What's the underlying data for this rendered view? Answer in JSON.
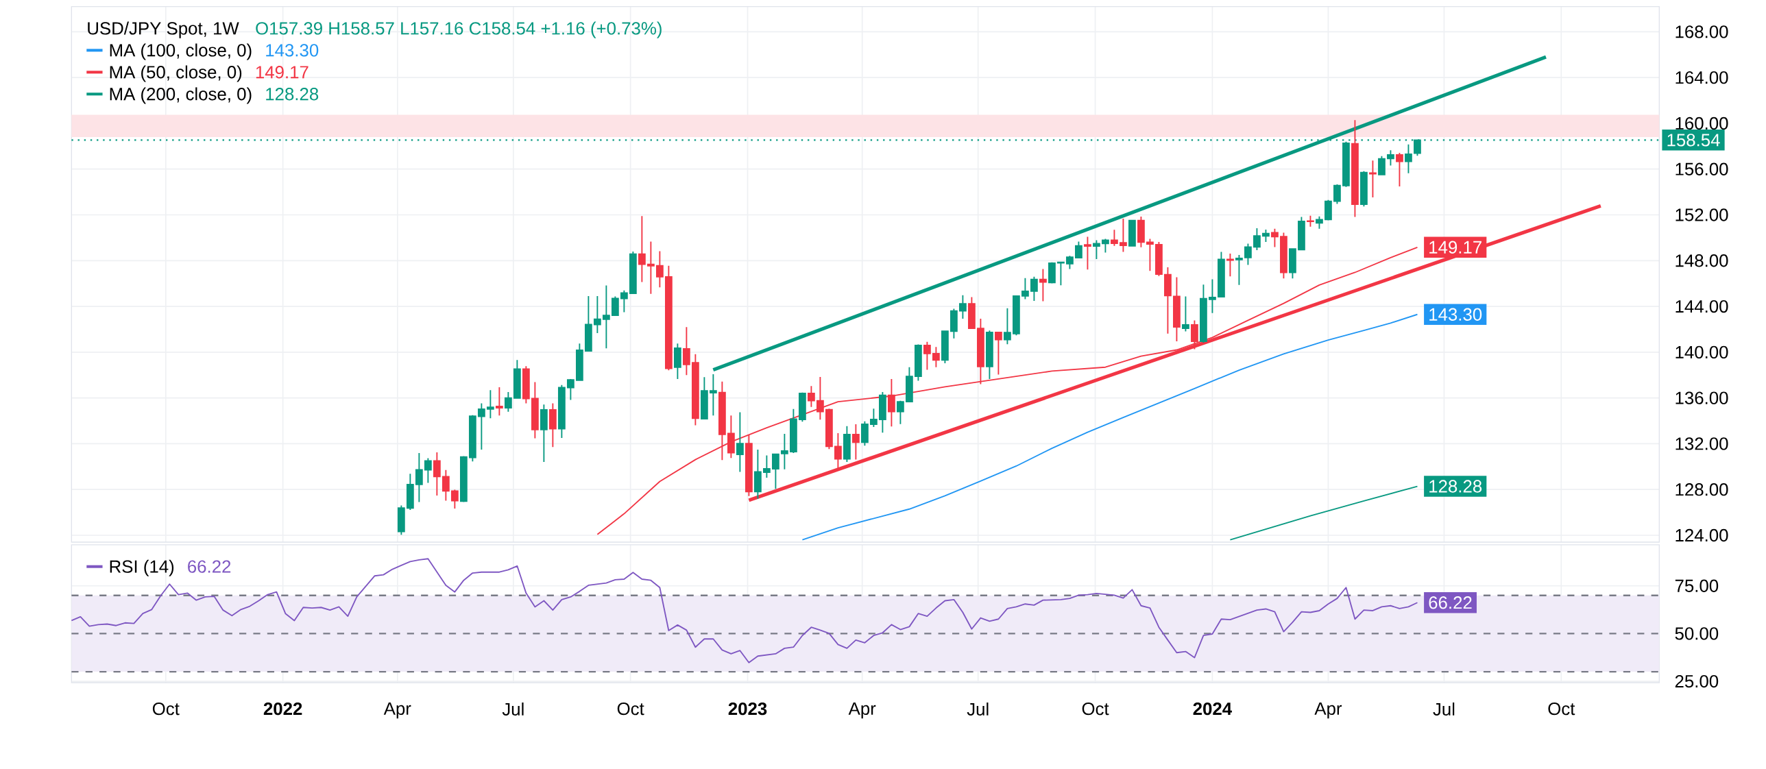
{
  "chart_data": [
    {
      "type": "candlestick",
      "title": "USD/JPY Spot, 1W",
      "subtitle": "O157.39  H158.57  L157.16  C158.54  +1.16 (+0.73%)",
      "xlim": [
        "2021-07-19",
        "2024-12-17"
      ],
      "ylim": [
        123.4,
        170.2
      ],
      "grid": true,
      "legend": "top left",
      "tick_labels": "y",
      "xticks": [
        {
          "value": "2021-10-01",
          "label": null
        },
        {
          "value": "2022-01-01",
          "label": null
        },
        {
          "value": "2022-04-01",
          "label": null
        },
        {
          "value": "2022-07-01",
          "label": null
        },
        {
          "value": "2022-10-01",
          "label": null
        },
        {
          "value": "2023-01-01",
          "label": null
        },
        {
          "value": "2023-04-01",
          "label": null
        },
        {
          "value": "2023-07-01",
          "label": null
        },
        {
          "value": "2023-10-01",
          "label": null
        },
        {
          "value": "2024-01-01",
          "label": null
        },
        {
          "value": "2024-04-01",
          "label": null
        },
        {
          "value": "2024-07-01",
          "label": null
        },
        {
          "value": "2024-10-01",
          "label": null
        }
      ],
      "yticks": [
        {
          "value": 124,
          "label": "124.00"
        },
        {
          "value": 128,
          "label": "128.00"
        },
        {
          "value": 132,
          "label": "132.00"
        },
        {
          "value": 136,
          "label": "136.00"
        },
        {
          "value": 140,
          "label": "140.00"
        },
        {
          "value": 144,
          "label": "144.00"
        },
        {
          "value": 148,
          "label": "148.00"
        },
        {
          "value": 152,
          "label": "152.00"
        },
        {
          "value": 156,
          "label": "156.00"
        },
        {
          "value": 160,
          "label": "160.00"
        },
        {
          "value": 164,
          "label": "164.00"
        },
        {
          "value": 168,
          "label": "168.00"
        }
      ],
      "ref_lines": [
        {
          "axis": "y",
          "value": 158.54,
          "label": "158.54",
          "color": "#089981",
          "line_style": "dotted"
        }
      ],
      "bands": [
        {
          "axis": "y",
          "from": 158.8,
          "to": 160.74,
          "color": "#fde3e6"
        }
      ],
      "series": [
        {
          "x": [
            "2022-04-04",
            "2022-04-11",
            "2022-04-18",
            "2022-04-25",
            "2022-05-02",
            "2022-05-09",
            "2022-05-16",
            "2022-05-23",
            "2022-05-30",
            "2022-06-06",
            "2022-06-13",
            "2022-06-20",
            "2022-06-27",
            "2022-07-04",
            "2022-07-11",
            "2022-07-18",
            "2022-07-25",
            "2022-08-01",
            "2022-08-08",
            "2022-08-15",
            "2022-08-22",
            "2022-08-29",
            "2022-09-05",
            "2022-09-12",
            "2022-09-19",
            "2022-09-26",
            "2022-10-03",
            "2022-10-10",
            "2022-10-17",
            "2022-10-24",
            "2022-10-31",
            "2022-11-07",
            "2022-11-14",
            "2022-11-21",
            "2022-11-28",
            "2022-12-05",
            "2022-12-12",
            "2022-12-19",
            "2022-12-26",
            "2023-01-02",
            "2023-01-09",
            "2023-01-16",
            "2023-01-23",
            "2023-01-30",
            "2023-02-06",
            "2023-02-13",
            "2023-02-20",
            "2023-02-27",
            "2023-03-06",
            "2023-03-13",
            "2023-03-20",
            "2023-03-27",
            "2023-04-03",
            "2023-04-10",
            "2023-04-17",
            "2023-04-24",
            "2023-05-01",
            "2023-05-08",
            "2023-05-15",
            "2023-05-22",
            "2023-05-29",
            "2023-06-05",
            "2023-06-12",
            "2023-06-19",
            "2023-06-26",
            "2023-07-03",
            "2023-07-10",
            "2023-07-17",
            "2023-07-24",
            "2023-07-31",
            "2023-08-07",
            "2023-08-14",
            "2023-08-21",
            "2023-08-28",
            "2023-09-04",
            "2023-09-11",
            "2023-09-18",
            "2023-09-25",
            "2023-10-02",
            "2023-10-09",
            "2023-10-16",
            "2023-10-23",
            "2023-10-30",
            "2023-11-06",
            "2023-11-13",
            "2023-11-20",
            "2023-11-27",
            "2023-12-04",
            "2023-12-11",
            "2023-12-18",
            "2023-12-25",
            "2024-01-01",
            "2024-01-08",
            "2024-01-15",
            "2024-01-22",
            "2024-01-29",
            "2024-02-05",
            "2024-02-12",
            "2024-02-19",
            "2024-02-26",
            "2024-03-04",
            "2024-03-11",
            "2024-03-18",
            "2024-03-25",
            "2024-04-01",
            "2024-04-08",
            "2024-04-15",
            "2024-04-22",
            "2024-04-29",
            "2024-05-06",
            "2024-05-13",
            "2024-05-20",
            "2024-05-27",
            "2024-06-03",
            "2024-06-10"
          ],
          "ohlc": [
            [
              124.32,
              126.61,
              124.05,
              126.38
            ],
            [
              126.38,
              129.38,
              126.22,
              128.44
            ],
            [
              128.44,
              131.19,
              126.91,
              129.72
            ],
            [
              129.72,
              130.73,
              128.58,
              130.5
            ],
            [
              130.5,
              131.25,
              127.48,
              129.13
            ],
            [
              129.13,
              129.7,
              127.02,
              127.87
            ],
            [
              127.87,
              127.98,
              126.33,
              127.02
            ],
            [
              126.97,
              130.91,
              126.91,
              130.84
            ],
            [
              130.8,
              134.5,
              130.45,
              134.41
            ],
            [
              134.39,
              135.53,
              131.48,
              135.03
            ],
            [
              135.03,
              136.68,
              134.23,
              135.19
            ],
            [
              135.26,
              136.93,
              134.46,
              135.14
            ],
            [
              135.14,
              136.52,
              134.8,
              135.99
            ],
            [
              135.99,
              139.31,
              135.95,
              138.53
            ],
            [
              138.53,
              138.78,
              135.53,
              135.95
            ],
            [
              135.95,
              137.39,
              132.47,
              133.24
            ],
            [
              133.24,
              135.42,
              130.41,
              134.96
            ],
            [
              134.96,
              135.53,
              131.71,
              133.31
            ],
            [
              133.31,
              137.13,
              132.51,
              136.91
            ],
            [
              136.91,
              137.66,
              135.83,
              137.59
            ],
            [
              137.55,
              140.75,
              137.55,
              140.18
            ],
            [
              140.11,
              144.91,
              140.11,
              142.42
            ],
            [
              142.42,
              144.91,
              141.67,
              142.88
            ],
            [
              142.88,
              145.83,
              140.34,
              143.22
            ],
            [
              143.22,
              144.87,
              143.22,
              144.69
            ],
            [
              144.69,
              145.4,
              143.5,
              145.17
            ],
            [
              145.14,
              148.8,
              145.1,
              148.58
            ],
            [
              148.58,
              151.89,
              146.13,
              147.68
            ],
            [
              147.68,
              149.67,
              145.1,
              147.55
            ],
            [
              147.55,
              148.83,
              145.67,
              146.59
            ],
            [
              146.59,
              147.55,
              138.42,
              138.58
            ],
            [
              138.69,
              140.75,
              137.66,
              140.36
            ],
            [
              140.29,
              142.19,
              138.0,
              138.92
            ],
            [
              139.08,
              139.83,
              133.61,
              134.23
            ],
            [
              134.18,
              137.82,
              134.16,
              136.63
            ],
            [
              136.45,
              138.07,
              134.46,
              136.63
            ],
            [
              136.47,
              137.43,
              130.57,
              132.81
            ],
            [
              132.9,
              134.46,
              130.75,
              131.21
            ],
            [
              131.07,
              134.75,
              129.54,
              132.01
            ],
            [
              132.01,
              132.74,
              127.43,
              127.82
            ],
            [
              127.82,
              131.48,
              127.2,
              129.54
            ],
            [
              129.5,
              130.98,
              129.03,
              129.81
            ],
            [
              129.81,
              131.09,
              128.05,
              131.09
            ],
            [
              131.14,
              132.86,
              129.77,
              131.37
            ],
            [
              131.3,
              135.03,
              131.19,
              134.16
            ],
            [
              134.12,
              136.47,
              133.93,
              136.4
            ],
            [
              136.4,
              137.04,
              135.21,
              135.76
            ],
            [
              135.76,
              137.84,
              134.11,
              134.8
            ],
            [
              134.98,
              135.07,
              131.53,
              131.76
            ],
            [
              131.76,
              132.92,
              129.81,
              130.68
            ],
            [
              130.68,
              133.54,
              130.41,
              132.81
            ],
            [
              132.81,
              133.7,
              130.61,
              132.12
            ],
            [
              132.12,
              133.95,
              131.83,
              133.7
            ],
            [
              133.7,
              135.07,
              133.47,
              134.12
            ],
            [
              134.12,
              136.52,
              132.97,
              136.24
            ],
            [
              136.24,
              137.66,
              133.5,
              134.8
            ],
            [
              134.8,
              135.76,
              133.72,
              135.67
            ],
            [
              135.67,
              138.69,
              135.67,
              137.89
            ],
            [
              137.89,
              140.68,
              137.5,
              140.59
            ],
            [
              140.59,
              140.91,
              138.46,
              139.88
            ],
            [
              139.88,
              140.45,
              138.69,
              139.31
            ],
            [
              139.31,
              141.9,
              139.03,
              141.83
            ],
            [
              141.83,
              143.79,
              141.21,
              143.61
            ],
            [
              143.61,
              144.98,
              142.92,
              144.23
            ],
            [
              144.23,
              144.82,
              142.08,
              142.08
            ],
            [
              142.08,
              142.92,
              137.2,
              138.74
            ],
            [
              138.74,
              141.9,
              137.66,
              141.73
            ],
            [
              141.73,
              141.73,
              138.05,
              141.09
            ],
            [
              141.09,
              143.84,
              140.7,
              141.71
            ],
            [
              141.62,
              144.91,
              141.48,
              144.91
            ],
            [
              144.91,
              146.47,
              144.64,
              145.33
            ],
            [
              145.33,
              146.59,
              144.48,
              146.36
            ],
            [
              146.36,
              147.27,
              144.46,
              146.13
            ],
            [
              146.08,
              147.85,
              146.01,
              147.78
            ],
            [
              147.8,
              147.89,
              145.85,
              147.85
            ],
            [
              147.73,
              148.42,
              147.27,
              148.3
            ],
            [
              148.26,
              149.67,
              148.26,
              149.29
            ],
            [
              149.38,
              150.09,
              147.23,
              149.27
            ],
            [
              149.27,
              149.79,
              148.14,
              149.49
            ],
            [
              149.49,
              149.9,
              148.71,
              149.79
            ],
            [
              149.79,
              150.7,
              149.29,
              149.51
            ],
            [
              149.56,
              151.67,
              148.76,
              149.33
            ],
            [
              149.29,
              151.55,
              149.29,
              151.51
            ],
            [
              151.51,
              151.85,
              149.17,
              149.61
            ],
            [
              149.61,
              149.9,
              147.11,
              149.45
            ],
            [
              149.4,
              149.63,
              146.65,
              146.81
            ],
            [
              146.78,
              147.42,
              141.63,
              144.95
            ],
            [
              144.88,
              146.55,
              140.95,
              142.21
            ],
            [
              142.09,
              144.88,
              141.82,
              142.39
            ],
            [
              142.39,
              142.78,
              140.26,
              140.95
            ],
            [
              140.95,
              145.91,
              140.83,
              144.68
            ],
            [
              144.61,
              146.37,
              143.42,
              144.79
            ],
            [
              144.84,
              148.77,
              144.84,
              148.11
            ],
            [
              148.11,
              148.61,
              146.62,
              148.04
            ],
            [
              148.09,
              148.5,
              145.87,
              148.2
            ],
            [
              148.27,
              149.48,
              147.63,
              149.19
            ],
            [
              149.19,
              150.83,
              148.91,
              150.17
            ],
            [
              150.15,
              150.72,
              149.64,
              150.38
            ],
            [
              150.44,
              150.79,
              149.19,
              150.1
            ],
            [
              150.1,
              150.44,
              146.44,
              146.97
            ],
            [
              146.97,
              149.07,
              146.44,
              149.03
            ],
            [
              148.96,
              151.82,
              148.91,
              151.43
            ],
            [
              151.47,
              151.93,
              150.97,
              151.43
            ],
            [
              151.29,
              151.86,
              150.79,
              151.59
            ],
            [
              151.59,
              153.3,
              151.52,
              153.19
            ],
            [
              153.19,
              154.67,
              152.96,
              154.56
            ],
            [
              154.56,
              158.39,
              154.44,
              158.27
            ],
            [
              158.22,
              160.28,
              151.82,
              152.92
            ],
            [
              152.92,
              155.82,
              152.73,
              155.71
            ],
            [
              155.66,
              156.74,
              153.53,
              155.59
            ],
            [
              155.52,
              157.13,
              155.48,
              156.9
            ],
            [
              156.92,
              157.65,
              156.32,
              157.24
            ],
            [
              157.24,
              157.42,
              154.49,
              156.67
            ],
            [
              156.67,
              158.16,
              155.64,
              157.31
            ],
            [
              157.39,
              158.57,
              157.16,
              158.54
            ]
          ],
          "colors": [
            "#089981",
            "#089981",
            "#089981",
            "#089981",
            "#f23645",
            "#f23645",
            "#f23645",
            "#089981",
            "#089981",
            "#089981",
            "#089981",
            "#f23645",
            "#089981",
            "#089981",
            "#f23645",
            "#f23645",
            "#089981",
            "#f23645",
            "#089981",
            "#089981",
            "#089981",
            "#089981",
            "#089981",
            "#089981",
            "#089981",
            "#089981",
            "#089981",
            "#f23645",
            "#f23645",
            "#f23645",
            "#f23645",
            "#089981",
            "#f23645",
            "#f23645",
            "#089981",
            "#089981",
            "#f23645",
            "#f23645",
            "#089981",
            "#f23645",
            "#089981",
            "#089981",
            "#089981",
            "#089981",
            "#089981",
            "#089981",
            "#f23645",
            "#f23645",
            "#f23645",
            "#f23645",
            "#089981",
            "#f23645",
            "#089981",
            "#089981",
            "#089981",
            "#f23645",
            "#089981",
            "#089981",
            "#089981",
            "#f23645",
            "#f23645",
            "#089981",
            "#089981",
            "#089981",
            "#f23645",
            "#f23645",
            "#089981",
            "#f23645",
            "#089981",
            "#089981",
            "#089981",
            "#089981",
            "#f23645",
            "#089981",
            "#089981",
            "#089981",
            "#089981",
            "#f23645",
            "#089981",
            "#089981",
            "#f23645",
            "#f23645",
            "#089981",
            "#f23645",
            "#f23645",
            "#f23645",
            "#f23645",
            "#f23645",
            "#089981",
            "#f23645",
            "#089981",
            "#089981",
            "#089981",
            "#f23645",
            "#089981",
            "#089981",
            "#089981",
            "#089981",
            "#f23645",
            "#f23645",
            "#089981",
            "#089981",
            "#f23645",
            "#089981",
            "#089981",
            "#089981",
            "#089981",
            "#f23645",
            "#089981",
            "#f23645",
            "#089981",
            "#089981",
            "#f23645",
            "#089981",
            "#089981"
          ]
        },
        {
          "type": "line",
          "name": "MA (100, close, 0)",
          "color": "#2196f3",
          "x": [
            "2023-02-13",
            "2023-03-13",
            "2023-05-08",
            "2023-06-05",
            "2023-07-03",
            "2023-07-31",
            "2023-08-28",
            "2023-09-25",
            "2023-10-23",
            "2023-12-18",
            "2024-01-22",
            "2024-02-26",
            "2024-04-01",
            "2024-04-29",
            "2024-05-20",
            "2024-06-10"
          ],
          "values": [
            123.6,
            124.65,
            126.29,
            127.45,
            128.74,
            130.05,
            131.6,
            133.0,
            134.3,
            136.83,
            138.43,
            139.85,
            141.06,
            141.9,
            142.55,
            143.3
          ],
          "value_labels": [
            null,
            null,
            null,
            null,
            null,
            null,
            null,
            null,
            null,
            null,
            null,
            null,
            null,
            null,
            null,
            "143.30"
          ]
        },
        {
          "type": "line",
          "name": "MA (50, close, 0)",
          "color": "#f23645",
          "x": [
            "2022-09-05",
            "2022-09-26",
            "2022-10-24",
            "2022-11-21",
            "2022-12-19",
            "2023-01-16",
            "2023-03-13",
            "2023-04-24",
            "2023-06-05",
            "2023-07-17",
            "2023-08-28",
            "2023-10-09",
            "2023-11-06",
            "2023-12-04",
            "2024-01-01",
            "2024-01-29",
            "2024-02-26",
            "2024-03-25",
            "2024-04-22",
            "2024-05-20",
            "2024-06-10"
          ],
          "values": [
            124.07,
            125.88,
            128.7,
            130.61,
            132.17,
            133.4,
            135.67,
            136.17,
            136.97,
            137.66,
            138.35,
            138.69,
            139.65,
            140.2,
            141.29,
            142.78,
            144.27,
            145.87,
            146.97,
            148.27,
            149.17
          ],
          "value_labels": [
            null,
            null,
            null,
            null,
            null,
            null,
            null,
            null,
            null,
            null,
            null,
            null,
            null,
            null,
            null,
            null,
            null,
            null,
            null,
            null,
            "149.17"
          ]
        },
        {
          "type": "line",
          "name": "MA (200, close, 0)",
          "color": "#089981",
          "x": [
            "2024-01-15",
            "2024-03-18",
            "2024-04-29",
            "2024-06-10"
          ],
          "values": [
            123.6,
            125.7,
            127.0,
            128.28
          ],
          "value_labels": [
            null,
            null,
            null,
            "128.28"
          ]
        },
        {
          "type": "line",
          "color": "#089981",
          "x": [
            "2022-12-05",
            "2024-09-19"
          ],
          "values": [
            138.45,
            165.8
          ]
        },
        {
          "type": "line",
          "color": "#f23645",
          "x": [
            "2023-01-02",
            "2024-11-01"
          ],
          "values": [
            127.06,
            152.79
          ]
        }
      ]
    },
    {
      "type": "line",
      "xlim": [
        "2021-07-19",
        "2024-12-17"
      ],
      "ylim": [
        24.3,
        96.5
      ],
      "grid": true,
      "legend": "top left",
      "xticks": [
        {
          "value": "2021-10-01",
          "label": "Oct"
        },
        {
          "value": "2022-01-01",
          "label": "2022"
        },
        {
          "value": "2022-04-01",
          "label": "Apr"
        },
        {
          "value": "2022-07-01",
          "label": "Jul"
        },
        {
          "value": "2022-10-01",
          "label": "Oct"
        },
        {
          "value": "2023-01-01",
          "label": "2023"
        },
        {
          "value": "2023-04-01",
          "label": "Apr"
        },
        {
          "value": "2023-07-01",
          "label": "Jul"
        },
        {
          "value": "2023-10-01",
          "label": "Oct"
        },
        {
          "value": "2024-01-01",
          "label": "2024"
        },
        {
          "value": "2024-04-01",
          "label": "Apr"
        },
        {
          "value": "2024-07-01",
          "label": "Jul"
        },
        {
          "value": "2024-10-01",
          "label": "Oct"
        }
      ],
      "yticks": [
        {
          "value": 25,
          "label": "25.00"
        },
        {
          "value": 50,
          "label": "50.00"
        },
        {
          "value": 75,
          "label": "75.00"
        }
      ],
      "bands": [
        {
          "axis": "y",
          "from": 30,
          "to": 70,
          "color": "#f0ebf8"
        }
      ],
      "ref_lines": [
        {
          "axis": "y",
          "value": 70,
          "color": "#787b86",
          "line_style": "dashed"
        },
        {
          "axis": "y",
          "value": 50,
          "color": "#787b86",
          "line_style": "dashed"
        },
        {
          "axis": "y",
          "value": 30,
          "color": "#787b86",
          "line_style": "dashed"
        }
      ],
      "series": [
        {
          "name": "RSI (14)",
          "color": "#7e57c2",
          "x": [
            "2021-07-19",
            "2021-07-26",
            "2021-08-02",
            "2021-08-09",
            "2021-08-16",
            "2021-08-23",
            "2021-08-30",
            "2021-09-06",
            "2021-09-13",
            "2021-09-20",
            "2021-09-27",
            "2021-10-04",
            "2021-10-11",
            "2021-10-18",
            "2021-10-25",
            "2021-11-01",
            "2021-11-08",
            "2021-11-15",
            "2021-11-22",
            "2021-11-29",
            "2021-12-06",
            "2021-12-13",
            "2021-12-20",
            "2021-12-27",
            "2022-01-03",
            "2022-01-10",
            "2022-01-17",
            "2022-01-24",
            "2022-01-31",
            "2022-02-07",
            "2022-02-14",
            "2022-02-21",
            "2022-02-28",
            "2022-03-07",
            "2022-03-14",
            "2022-03-21",
            "2022-03-28",
            "2022-04-04",
            "2022-04-11",
            "2022-04-18",
            "2022-04-25",
            "2022-05-09",
            "2022-05-16",
            "2022-05-23",
            "2022-05-30",
            "2022-06-06",
            "2022-06-20",
            "2022-06-27",
            "2022-07-04",
            "2022-07-11",
            "2022-07-18",
            "2022-07-25",
            "2022-08-01",
            "2022-08-08",
            "2022-08-15",
            "2022-08-22",
            "2022-08-29",
            "2022-09-12",
            "2022-09-19",
            "2022-09-26",
            "2022-10-03",
            "2022-10-10",
            "2022-10-17",
            "2022-10-24",
            "2022-10-31",
            "2022-11-07",
            "2022-11-14",
            "2022-11-21",
            "2022-11-28",
            "2022-12-05",
            "2022-12-12",
            "2022-12-19",
            "2022-12-26",
            "2023-01-02",
            "2023-01-09",
            "2023-01-23",
            "2023-01-30",
            "2023-02-06",
            "2023-02-13",
            "2023-02-20",
            "2023-02-27",
            "2023-03-06",
            "2023-03-13",
            "2023-03-20",
            "2023-03-27",
            "2023-04-03",
            "2023-04-10",
            "2023-04-17",
            "2023-04-24",
            "2023-05-01",
            "2023-05-08",
            "2023-05-15",
            "2023-05-22",
            "2023-05-29",
            "2023-06-05",
            "2023-06-12",
            "2023-06-19",
            "2023-06-26",
            "2023-07-03",
            "2023-07-10",
            "2023-07-17",
            "2023-07-24",
            "2023-07-31",
            "2023-08-07",
            "2023-08-14",
            "2023-08-21",
            "2023-09-04",
            "2023-09-11",
            "2023-09-18",
            "2023-09-25",
            "2023-10-02",
            "2023-10-16",
            "2023-10-23",
            "2023-10-30",
            "2023-11-06",
            "2023-11-13",
            "2023-11-20",
            "2023-11-27",
            "2023-12-04",
            "2023-12-11",
            "2023-12-18",
            "2023-12-25",
            "2024-01-01",
            "2024-01-08",
            "2024-01-15",
            "2024-02-05",
            "2024-02-12",
            "2024-02-19",
            "2024-02-26",
            "2024-03-04",
            "2024-03-11",
            "2024-03-18",
            "2024-03-25",
            "2024-04-01",
            "2024-04-08",
            "2024-04-15",
            "2024-04-22",
            "2024-04-29",
            "2024-05-06",
            "2024-05-13",
            "2024-05-20",
            "2024-05-27",
            "2024-06-03",
            "2024-06-10"
          ],
          "values": [
            56.8,
            58.8,
            53.9,
            54.7,
            55.0,
            54.2,
            55.6,
            55.3,
            60.5,
            62.6,
            69.8,
            75.9,
            70.4,
            71.2,
            67.5,
            69.2,
            69.5,
            62.3,
            59.4,
            62.6,
            64.3,
            67.2,
            70.4,
            71.8,
            60.5,
            56.8,
            63.7,
            63.4,
            63.7,
            62.3,
            64.0,
            59.1,
            69.2,
            74.7,
            80.2,
            80.8,
            83.7,
            85.7,
            87.7,
            88.6,
            89.2,
            75.3,
            71.8,
            77.9,
            81.7,
            82.2,
            82.2,
            83.4,
            85.4,
            71.2,
            64.0,
            67.2,
            62.3,
            67.8,
            69.2,
            72.1,
            75.3,
            76.5,
            78.2,
            78.5,
            82.0,
            78.5,
            77.9,
            74.1,
            51.6,
            54.5,
            51.8,
            42.9,
            47.2,
            47.2,
            41.4,
            39.4,
            41.1,
            34.8,
            38.2,
            39.4,
            42.3,
            42.9,
            49.0,
            53.3,
            51.8,
            50.1,
            44.3,
            42.3,
            46.6,
            45.2,
            49.0,
            50.4,
            54.7,
            52.1,
            53.6,
            60.5,
            59.1,
            63.4,
            67.2,
            67.8,
            61.1,
            52.4,
            58.2,
            56.5,
            57.6,
            63.1,
            64.0,
            65.5,
            64.9,
            67.5,
            67.8,
            68.4,
            70.1,
            70.4,
            71.0,
            70.1,
            68.6,
            73.0,
            64.6,
            63.4,
            53.3,
            46.6,
            40.0,
            40.6,
            37.4,
            49.0,
            49.8,
            57.6,
            57.3,
            62.3,
            62.9,
            61.4,
            51.0,
            55.9,
            61.4,
            61.1,
            62.0,
            65.5,
            68.4,
            74.1,
            57.6,
            62.3,
            62.0,
            64.0,
            64.6,
            63.1,
            64.0,
            66.22
          ],
          "value_labels": [
            null,
            null,
            null,
            null,
            null,
            null,
            null,
            null,
            null,
            null,
            null,
            null,
            null,
            null,
            null,
            null,
            null,
            null,
            null,
            null,
            null,
            null,
            null,
            null,
            null,
            null,
            null,
            null,
            null,
            null,
            null,
            null,
            null,
            null,
            null,
            null,
            null,
            null,
            null,
            null,
            null,
            null,
            null,
            null,
            null,
            null,
            null,
            null,
            null,
            null,
            null,
            null,
            null,
            null,
            null,
            null,
            null,
            null,
            null,
            null,
            null,
            null,
            null,
            null,
            null,
            null,
            null,
            null,
            null,
            null,
            null,
            null,
            null,
            null,
            null,
            null,
            null,
            null,
            null,
            null,
            null,
            null,
            null,
            null,
            null,
            null,
            null,
            null,
            null,
            null,
            null,
            null,
            null,
            null,
            null,
            null,
            null,
            null,
            null,
            null,
            null,
            null,
            null,
            null,
            null,
            null,
            null,
            null,
            null,
            null,
            null,
            null,
            null,
            null,
            null,
            null,
            null,
            null,
            null,
            null,
            null,
            null,
            null,
            null,
            null,
            null,
            null,
            null,
            null,
            null,
            null,
            null,
            null,
            null,
            null,
            null,
            null,
            null,
            null,
            null,
            null,
            null,
            null,
            "66.22"
          ]
        }
      ]
    }
  ]
}
